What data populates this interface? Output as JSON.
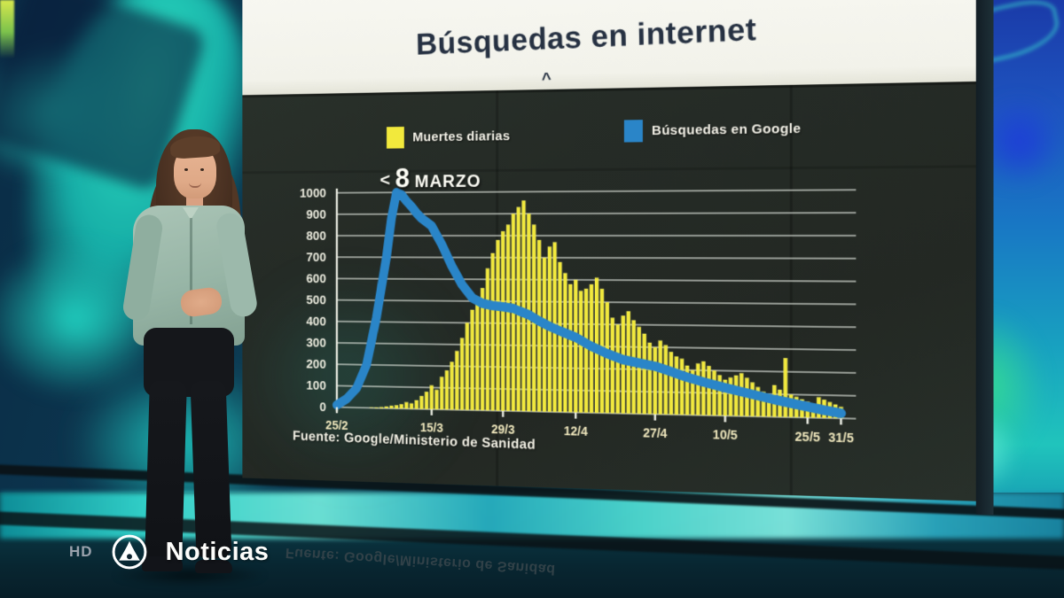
{
  "broadcast": {
    "channel_badge": "HD",
    "channel_name": "Noticias"
  },
  "screen": {
    "title": "Búsquedas en internet",
    "caret": "^",
    "legend": [
      {
        "label": "Muertes diarias",
        "color": "#f2e93c"
      },
      {
        "label": "Búsquedas en Google",
        "color": "#2a85c8"
      }
    ],
    "annotation": {
      "marker": "<",
      "number": "8",
      "month": "MARZO"
    },
    "source": "Fuente: Google/Ministerio de Sanidad",
    "floor_reflection": "Fuente: Google/Ministerio de Sanidad"
  },
  "chart_data": {
    "type": "bar",
    "title": "Búsquedas en internet",
    "xlabel": "",
    "ylabel": "",
    "date_range": {
      "start": "25/2",
      "end": "31/5"
    },
    "y_axis": {
      "min": 0,
      "max": 1000,
      "step": 100,
      "ticks": [
        1000,
        900,
        800,
        700,
        600,
        500,
        400,
        300,
        200,
        100,
        0
      ]
    },
    "x_ticks": [
      {
        "label": "25/2",
        "day": 0
      },
      {
        "label": "15/3",
        "day": 19
      },
      {
        "label": "29/3",
        "day": 33
      },
      {
        "label": "12/4",
        "day": 47
      },
      {
        "label": "27/4",
        "day": 62
      },
      {
        "label": "10/5",
        "day": 75
      },
      {
        "label": "25/5",
        "day": 90
      },
      {
        "label": "31/5",
        "day": 96
      }
    ],
    "annotation": {
      "text": "8 MARZO",
      "day": 12,
      "value": 1000
    },
    "legend_position": "top",
    "grid": true,
    "series": [
      {
        "name": "Muertes diarias",
        "kind": "bar",
        "color": "#f2e93c",
        "values": [
          0,
          0,
          0,
          0,
          0,
          0,
          0,
          2,
          3,
          5,
          8,
          12,
          15,
          20,
          30,
          25,
          40,
          60,
          80,
          110,
          90,
          150,
          180,
          220,
          270,
          330,
          400,
          460,
          520,
          560,
          650,
          720,
          780,
          820,
          850,
          900,
          930,
          960,
          900,
          850,
          780,
          700,
          750,
          770,
          680,
          630,
          580,
          600,
          550,
          560,
          580,
          610,
          560,
          500,
          430,
          400,
          440,
          460,
          420,
          390,
          360,
          320,
          300,
          330,
          310,
          280,
          260,
          250,
          220,
          200,
          230,
          240,
          220,
          200,
          180,
          160,
          170,
          180,
          190,
          170,
          150,
          130,
          110,
          100,
          140,
          120,
          260,
          100,
          90,
          80,
          70,
          60,
          90,
          80,
          70,
          60,
          50
        ]
      },
      {
        "name": "Búsquedas en Google",
        "kind": "line",
        "color": "#2a85c8",
        "points": [
          [
            0,
            10
          ],
          [
            2,
            40
          ],
          [
            4,
            90
          ],
          [
            6,
            200
          ],
          [
            8,
            420
          ],
          [
            10,
            700
          ],
          [
            11,
            880
          ],
          [
            12,
            1000
          ],
          [
            13,
            990
          ],
          [
            14,
            960
          ],
          [
            15,
            935
          ],
          [
            16,
            905
          ],
          [
            17,
            880
          ],
          [
            19,
            845
          ],
          [
            21,
            760
          ],
          [
            23,
            660
          ],
          [
            25,
            575
          ],
          [
            27,
            515
          ],
          [
            29,
            490
          ],
          [
            31,
            480
          ],
          [
            33,
            475
          ],
          [
            35,
            468
          ],
          [
            36,
            458
          ],
          [
            38,
            440
          ],
          [
            40,
            412
          ],
          [
            42,
            388
          ],
          [
            44,
            368
          ],
          [
            47,
            340
          ],
          [
            50,
            300
          ],
          [
            53,
            268
          ],
          [
            56,
            242
          ],
          [
            59,
            228
          ],
          [
            62,
            215
          ],
          [
            65,
            192
          ],
          [
            68,
            168
          ],
          [
            71,
            148
          ],
          [
            75,
            125
          ],
          [
            78,
            108
          ],
          [
            81,
            92
          ],
          [
            84,
            76
          ],
          [
            87,
            62
          ],
          [
            90,
            48
          ],
          [
            93,
            34
          ],
          [
            96,
            22
          ]
        ]
      }
    ],
    "source": "Fuente: Google/Ministerio de Sanidad"
  }
}
